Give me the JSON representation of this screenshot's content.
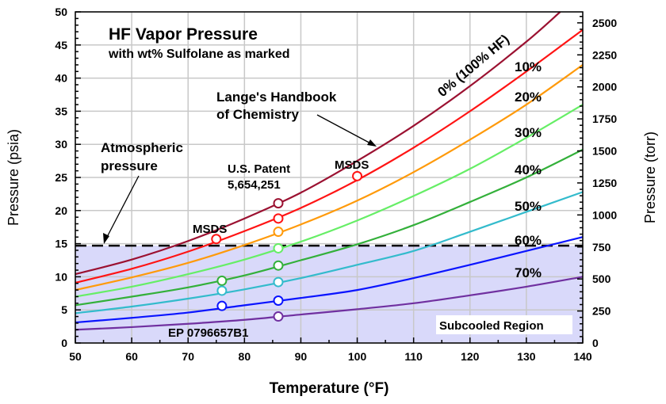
{
  "chart_data": {
    "type": "line",
    "title": "HF Vapor Pressure",
    "subtitle": "with wt% Sulfolane as marked",
    "xlabel": "Temperature (°F)",
    "ylabel": "Pressure (psia)",
    "y2label": "Pressure (torr)",
    "xlim": [
      50,
      140
    ],
    "ylim": [
      0,
      50
    ],
    "y2lim": [
      0,
      2585.7
    ],
    "xticks": [
      50,
      60,
      70,
      80,
      90,
      100,
      110,
      120,
      130,
      140
    ],
    "yticks": [
      0,
      5,
      10,
      15,
      20,
      25,
      30,
      35,
      40,
      45,
      50
    ],
    "y2ticks": [
      0,
      250,
      500,
      750,
      1000,
      1250,
      1500,
      1750,
      2000,
      2250,
      2500
    ],
    "grid": true,
    "atmospheric_pressure_psia": 14.7,
    "subcooled_fill_color": "#d9d9fa",
    "series": [
      {
        "name": "0% (100% HF)",
        "color": "#9b1131",
        "x": [
          50,
          60,
          70,
          80,
          90,
          100,
          110,
          120,
          130,
          136
        ],
        "y": [
          10.4,
          12.6,
          15.4,
          18.8,
          22.7,
          27.5,
          32.8,
          38.8,
          45.5,
          50
        ],
        "markers": [
          [
            86,
            21.1
          ]
        ]
      },
      {
        "name": "10%",
        "color": "#ff1414",
        "x": [
          50,
          60,
          70,
          80,
          90,
          100,
          110,
          120,
          130,
          140
        ],
        "y": [
          9.1,
          11.2,
          13.8,
          16.9,
          20.4,
          24.6,
          29.5,
          35.0,
          41.0,
          47.3
        ],
        "markers": [
          [
            75,
            15.7
          ],
          [
            86,
            18.8
          ],
          [
            100,
            25.2
          ]
        ]
      },
      {
        "name": "20%",
        "color": "#ff9a0a",
        "x": [
          50,
          60,
          70,
          80,
          90,
          100,
          110,
          120,
          130,
          140
        ],
        "y": [
          8.0,
          9.9,
          12.1,
          14.8,
          17.9,
          21.5,
          25.8,
          30.7,
          36.0,
          42.0
        ],
        "markers": [
          [
            86,
            16.8
          ]
        ]
      },
      {
        "name": "30%",
        "color": "#66ee66",
        "x": [
          50,
          60,
          70,
          80,
          90,
          100,
          110,
          120,
          130,
          140
        ],
        "y": [
          7.0,
          8.5,
          10.4,
          12.6,
          15.3,
          18.5,
          22.2,
          26.3,
          31.0,
          36.0
        ],
        "markers": [
          [
            86,
            14.3
          ]
        ]
      },
      {
        "name": "40%",
        "color": "#33b03a",
        "x": [
          50,
          60,
          70,
          80,
          90,
          100,
          110,
          120,
          130,
          140
        ],
        "y": [
          5.7,
          7.0,
          8.4,
          10.2,
          12.5,
          14.9,
          17.8,
          21.3,
          25.0,
          29.2
        ],
        "markers": [
          [
            76,
            9.4
          ],
          [
            86,
            11.7
          ]
        ]
      },
      {
        "name": "50%",
        "color": "#33bbcc",
        "x": [
          50,
          60,
          70,
          80,
          90,
          100,
          110,
          120,
          130,
          140
        ],
        "y": [
          4.5,
          5.5,
          6.7,
          8.1,
          9.8,
          11.8,
          13.9,
          16.8,
          19.8,
          22.8
        ],
        "markers": [
          [
            76,
            7.9
          ],
          [
            86,
            9.2
          ]
        ]
      },
      {
        "name": "60%",
        "color": "#0a14ff",
        "x": [
          50,
          60,
          70,
          80,
          90,
          100,
          110,
          120,
          130,
          140
        ],
        "y": [
          3.1,
          3.8,
          4.6,
          5.7,
          6.8,
          8.0,
          9.8,
          11.8,
          13.9,
          16.0
        ],
        "markers": [
          [
            76,
            5.6
          ],
          [
            86,
            6.4
          ]
        ]
      },
      {
        "name": "70%",
        "color": "#7030a0",
        "x": [
          50,
          60,
          70,
          80,
          90,
          100,
          110,
          120,
          130,
          140
        ],
        "y": [
          2.0,
          2.4,
          2.9,
          3.5,
          4.3,
          5.1,
          6.0,
          7.2,
          8.5,
          10.0
        ],
        "markers": [
          [
            86,
            4.0
          ]
        ]
      }
    ],
    "annotations": {
      "lange": [
        "Lange's Handbook",
        "of Chemistry"
      ],
      "atmospheric": [
        "Atmospheric",
        "pressure"
      ],
      "patent": [
        "U.S. Patent",
        "5,654,251"
      ],
      "msds": "MSDS",
      "ep": "EP 0796657B1",
      "subcooled": "Subcooled Region"
    }
  }
}
